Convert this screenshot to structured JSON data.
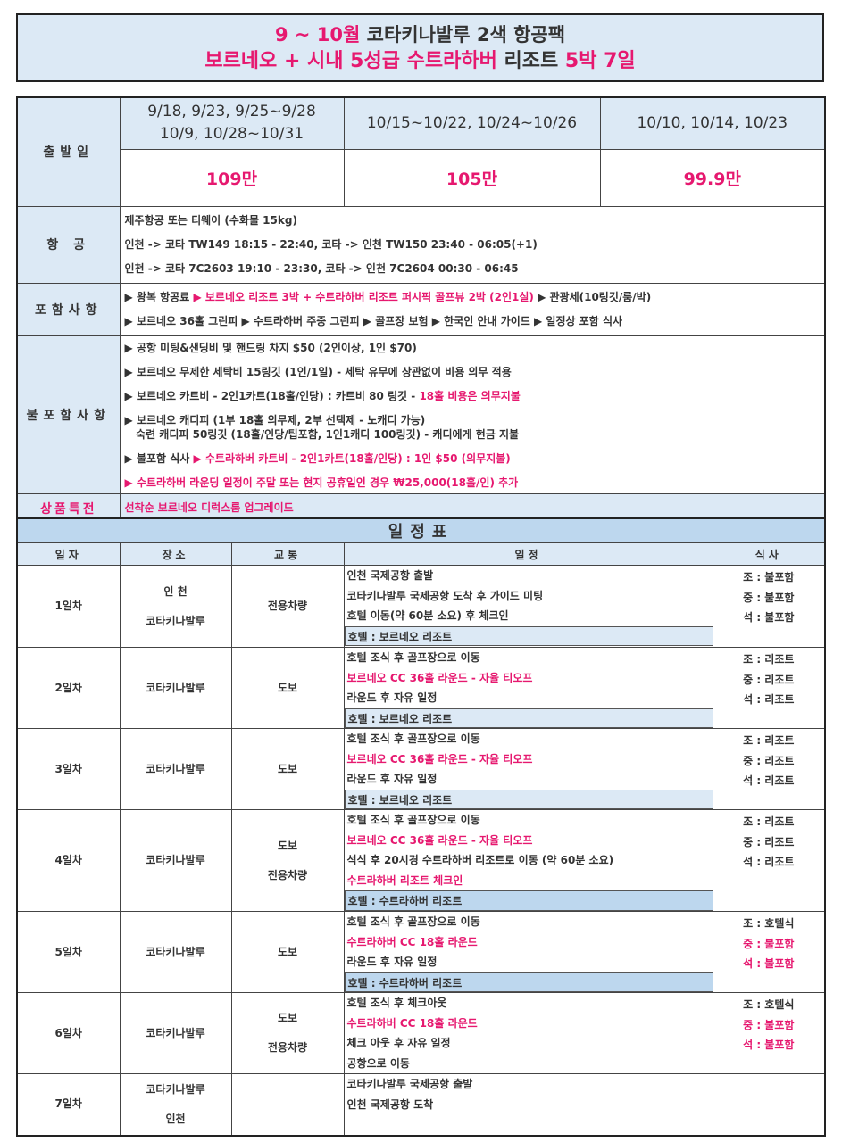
{
  "title": {
    "line1": [
      {
        "t": "9 ~ 10월 ",
        "red": true
      },
      {
        "t": "코타키나발루 2색 항공팩",
        "red": false
      }
    ],
    "line2": [
      {
        "t": "보르네오 + 시내 5성급 수트라하버 ",
        "red": true
      },
      {
        "t": "리조트 ",
        "red": false
      },
      {
        "t": "5박 7일",
        "red": true
      }
    ]
  },
  "info": {
    "departure_label": "출발일",
    "dates": [
      "9/18, 9/23, 9/25~9/28\n10/9, 10/28~10/31",
      "10/15~10/22, 10/24~10/26",
      "10/10, 10/14, 10/23"
    ],
    "prices": [
      "109만",
      "105만",
      "99.9만"
    ],
    "flight_label": "항 공",
    "flights": [
      "제주항공 또는 티웨이 (수화물 15kg)",
      "인천 -> 코타 TW149 18:15 - 22:40, 코타 -> 인천 TW150 23:40 - 06:05(+1)",
      "인천 -> 코타 7C2603 19:10 - 23:30, 코타 -> 인천 7C2604 00:30 - 06:45"
    ],
    "included_label": "포함사항",
    "included": [
      [
        {
          "t": "▶ 왕복 항공료 "
        },
        {
          "t": "▶ 보르네오 리조트 3박 + 수트라하버 리조트 퍼시픽 골프뷰 2박 (2인1실)",
          "red": true
        },
        {
          "t": " ▶ 관광세(10링깃/룸/박)"
        }
      ],
      [
        {
          "t": "▶ 보르네오 36홀 그린피 ▶ 수트라하버 주중 그린피 ▶ 골프장 보험 ▶ 한국인 안내 가이드 ▶ 일정상 포함 식사"
        }
      ]
    ],
    "excluded_label": "불포함사항",
    "excluded": [
      [
        {
          "t": "▶ 공항 미팅&샌딩비 및 핸드링 차지 $50 (2인이상, 1인 $70)"
        }
      ],
      [
        {
          "t": "▶ 보르네오 무제한 세탁비 15링깃 (1인/1일) - 세탁 유무에 상관없이 비용 의무 적용"
        }
      ],
      [
        {
          "t": "▶ 보르네오 카트비 - 2인1카트(18홀/인당) : 카트비 80 링깃 - "
        },
        {
          "t": "18홀 비용은 의무지불",
          "red": true
        }
      ],
      [
        {
          "t": "▶ 보르네오 캐디피 (1부 18홀 의무제, 2부 선택제 - 노캐디 가능)\n   숙련 캐디피 50링깃 (18홀/인당/팁포함, 1인1캐디 100링깃) - 캐디에게 현금 지불"
        }
      ],
      [
        {
          "t": "▶ 불포함 식사 "
        },
        {
          "t": "▶ 수트라하버 카트비 - 2인1카트(18홀/인당) : 1인 $50 (의무지불)",
          "red": true
        }
      ],
      [
        {
          "t": "▶ 수트라하버 라운딩 일정이 주말 또는 현지 공휴일인 경우 ₩25,000(18홀/인) 추가",
          "red": true
        }
      ]
    ],
    "special_label": "상품특전",
    "special": "선착순 보르네오 디럭스룸 업그레이드"
  },
  "schedule": {
    "title": "일정표",
    "headers": [
      "일자",
      "장소",
      "교통",
      "일정",
      "식사"
    ],
    "days": [
      {
        "day": "1일차",
        "place": [
          "인 천",
          "코타키나발루"
        ],
        "transport": [
          "전용차량"
        ],
        "items": [
          {
            "t": "인천 국제공항 출발"
          },
          {
            "t": "코타키나발루 국제공항 도착 후 가이드 미팅"
          },
          {
            "t": "호텔 이동(약 60분 소요) 후 체크인"
          }
        ],
        "hotel": "호텔 : 보르네오 리조트",
        "hotel_dark": false,
        "meals": [
          {
            "t": "조 : 불포함"
          },
          {
            "t": "중 : 불포함"
          },
          {
            "t": "석 : 불포함"
          }
        ]
      },
      {
        "day": "2일차",
        "place": [
          "코타키나발루"
        ],
        "transport": [
          "도보"
        ],
        "items": [
          {
            "t": "호텔 조식 후 골프장으로 이동"
          },
          {
            "t": "보르네오 CC 36홀 라운드 - 자율 티오프",
            "red": true
          },
          {
            "t": "라운드 후 자유 일정"
          }
        ],
        "hotel": "호텔 : 보르네오 리조트",
        "hotel_dark": false,
        "meals": [
          {
            "t": "조 : 리조트"
          },
          {
            "t": "중 : 리조트"
          },
          {
            "t": "석 : 리조트"
          }
        ]
      },
      {
        "day": "3일차",
        "place": [
          "코타키나발루"
        ],
        "transport": [
          "도보"
        ],
        "items": [
          {
            "t": "호텔 조식 후 골프장으로 이동"
          },
          {
            "t": "보르네오 CC 36홀 라운드 - 자율 티오프",
            "red": true
          },
          {
            "t": "라운드 후 자유 일정"
          }
        ],
        "hotel": "호텔 : 보르네오 리조트",
        "hotel_dark": false,
        "meals": [
          {
            "t": "조 : 리조트"
          },
          {
            "t": "중 : 리조트"
          },
          {
            "t": "석 : 리조트"
          }
        ]
      },
      {
        "day": "4일차",
        "place": [
          "코타키나발루"
        ],
        "transport": [
          "도보",
          "전용차량"
        ],
        "items": [
          {
            "t": "호텔 조식 후 골프장으로 이동"
          },
          {
            "t": "보르네오 CC 36홀 라운드 - 자율 티오프",
            "red": true
          },
          {
            "t": "석식 후 20시경 수트라하버 리조트로 이동 (약 60분 소요)"
          },
          {
            "t": "수트라하버 리조트 체크인",
            "red": true
          }
        ],
        "hotel": "호텔 : 수트라하버 리조트",
        "hotel_dark": true,
        "meals": [
          {
            "t": "조 : 리조트"
          },
          {
            "t": "중 : 리조트"
          },
          {
            "t": "석 : 리조트"
          }
        ]
      },
      {
        "day": "5일차",
        "place": [
          "코타키나발루"
        ],
        "transport": [
          "도보"
        ],
        "items": [
          {
            "t": "호텔 조식 후 골프장으로 이동"
          },
          {
            "t": "수트라하버 CC 18홀 라운드",
            "red": true
          },
          {
            "t": "라운드 후 자유 일정"
          }
        ],
        "hotel": "호텔 : 수트라하버 리조트",
        "hotel_dark": true,
        "meals": [
          {
            "t": "조 : 호텔식"
          },
          {
            "t": "중 : 불포함",
            "red": true
          },
          {
            "t": "석 : 불포함",
            "red": true
          }
        ]
      },
      {
        "day": "6일차",
        "place": [
          "코타키나발루"
        ],
        "transport": [
          "도보",
          "전용차량"
        ],
        "items": [
          {
            "t": "호텔 조식 후 체크아웃"
          },
          {
            "t": "수트라하버 CC 18홀 라운드",
            "red": true
          },
          {
            "t": "체크 아웃 후 자유 일정"
          },
          {
            "t": "공항으로 이동"
          }
        ],
        "hotel": null,
        "meals": [
          {
            "t": "조 : 호텔식"
          },
          {
            "t": "중 : 불포함",
            "red": true
          },
          {
            "t": "석 : 불포함",
            "red": true
          }
        ]
      },
      {
        "day": "7일차",
        "place": [
          "코타키나발루",
          "인천"
        ],
        "transport": [],
        "items": [
          {
            "t": "코타키나발루 국제공항 출발"
          },
          {
            "t": "인천 국제공항 도착"
          }
        ],
        "hotel": null,
        "meals": []
      }
    ]
  },
  "colors": {
    "accent_pink": "#e6186f",
    "label_bg": "#dce9f5",
    "header_bg": "#bdd7ee"
  }
}
